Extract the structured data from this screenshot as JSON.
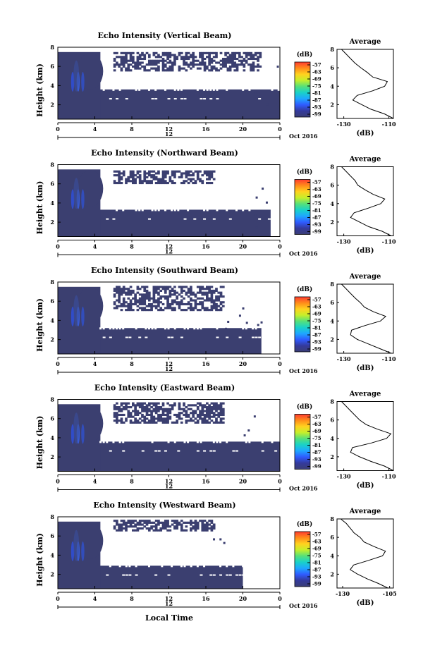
{
  "figure": {
    "xlabel": "Local Time",
    "date_label": "Oct 2016",
    "day_label": "12",
    "colorbar_unit": "(dB)",
    "colorbar_ticks": [
      "-57",
      "-63",
      "-69",
      "-75",
      "-81",
      "-87",
      "-93",
      "-99"
    ],
    "colorbar_colors": [
      "#ff3b30",
      "#ff8c1a",
      "#ffd21f",
      "#c6ef2a",
      "#55e07a",
      "#19d2c8",
      "#1ea7ff",
      "#2f5bff",
      "#343a9c",
      "#3a3d75"
    ],
    "background_color": "#3b3f70",
    "avg_title": "Average",
    "avg_xlabel": "(dB)"
  },
  "chart_data": [
    {
      "type": "heatmap",
      "title": "Echo Intensity (Vertical Beam)",
      "ylabel": "Height (km)",
      "x_ticks": [
        "0",
        "4",
        "8",
        "12",
        "16",
        "20",
        "0"
      ],
      "y_ticks": [
        "2",
        "4",
        "6",
        "8"
      ],
      "xlim": [
        0,
        24
      ],
      "ylim": [
        0.5,
        8
      ],
      "lower_layer_top_km": 3.6,
      "lower_layer_end_h": 24,
      "upper_layer": [
        5.5,
        7.5
      ],
      "upper_layer_end_h": 22,
      "average_profile": {
        "x_ticks": [
          "-130",
          "-110"
        ],
        "xlim": [
          -133,
          -108
        ],
        "y_ticks": [
          "2",
          "4",
          "6",
          "8"
        ],
        "height": [
          0.5,
          1,
          1.5,
          2,
          2.5,
          3,
          3.5,
          4,
          4.5,
          5,
          5.5,
          6,
          6.5,
          7,
          7.5,
          8
        ],
        "value": [
          -108,
          -112,
          -118,
          -122,
          -126,
          -125,
          -118,
          -112,
          -110,
          -117,
          -120,
          -122,
          -125,
          -127,
          -129,
          -131
        ]
      }
    },
    {
      "type": "heatmap",
      "title": "Echo Intensity (Northward Beam)",
      "ylabel": "Height (km)",
      "x_ticks": [
        "0",
        "4",
        "8",
        "12",
        "16",
        "20",
        "0"
      ],
      "y_ticks": [
        "2",
        "4",
        "6",
        "8"
      ],
      "xlim": [
        0,
        24
      ],
      "ylim": [
        0.5,
        8
      ],
      "lower_layer_top_km": 3.3,
      "lower_layer_end_h": 23,
      "upper_layer": [
        6.0,
        7.3
      ],
      "upper_layer_end_h": 17,
      "average_profile": {
        "x_ticks": [
          "-130",
          "-110"
        ],
        "xlim": [
          -133,
          -108
        ],
        "y_ticks": [
          "2",
          "4",
          "6",
          "8"
        ],
        "height": [
          0.5,
          1,
          1.5,
          2,
          2.5,
          3,
          3.5,
          4,
          4.5,
          5,
          5.5,
          6,
          6.5,
          7,
          7.5,
          8
        ],
        "value": [
          -109,
          -113,
          -119,
          -123,
          -127,
          -126,
          -119,
          -113,
          -112,
          -117,
          -121,
          -123,
          -125,
          -127,
          -129,
          -131
        ]
      }
    },
    {
      "type": "heatmap",
      "title": "Echo Intensity (Southward Beam)",
      "ylabel": "Height (km)",
      "x_ticks": [
        "0",
        "4",
        "8",
        "12",
        "16",
        "20",
        "0"
      ],
      "y_ticks": [
        "2",
        "4",
        "6",
        "8"
      ],
      "xlim": [
        0,
        24
      ],
      "ylim": [
        0.5,
        8
      ],
      "lower_layer_top_km": 3.2,
      "lower_layer_end_h": 22,
      "upper_layer": [
        5.0,
        7.6
      ],
      "upper_layer_end_h": 18,
      "average_profile": {
        "x_ticks": [
          "-130",
          "-110"
        ],
        "xlim": [
          -133,
          -108
        ],
        "y_ticks": [
          "2",
          "4",
          "6",
          "8"
        ],
        "height": [
          0.5,
          1,
          1.5,
          2,
          2.5,
          3,
          3.5,
          4,
          4.5,
          5,
          5.5,
          6,
          6.5,
          7,
          7.5,
          8
        ],
        "value": [
          -109,
          -114,
          -119,
          -124,
          -127,
          -126,
          -120,
          -113,
          -111,
          -116,
          -120,
          -123,
          -125,
          -127,
          -129,
          -131
        ]
      }
    },
    {
      "type": "heatmap",
      "title": "Echo Intensity (Eastward Beam)",
      "ylabel": "Height (km)",
      "x_ticks": [
        "0",
        "4",
        "8",
        "12",
        "16",
        "20",
        "0"
      ],
      "y_ticks": [
        "2",
        "4",
        "6",
        "8"
      ],
      "xlim": [
        0,
        24
      ],
      "ylim": [
        0.5,
        8
      ],
      "lower_layer_top_km": 3.6,
      "lower_layer_end_h": 24,
      "upper_layer": [
        5.5,
        7.6
      ],
      "upper_layer_end_h": 18,
      "average_profile": {
        "x_ticks": [
          "-130",
          "-110"
        ],
        "xlim": [
          -133,
          -108
        ],
        "y_ticks": [
          "2",
          "4",
          "6",
          "8"
        ],
        "height": [
          0.5,
          1,
          1.5,
          2,
          2.5,
          3,
          3.5,
          4,
          4.5,
          5,
          5.5,
          6,
          6.5,
          7,
          7.5,
          8
        ],
        "value": [
          -108,
          -112,
          -118,
          -123,
          -127,
          -126,
          -118,
          -112,
          -110,
          -116,
          -120,
          -122,
          -125,
          -127,
          -129,
          -131
        ]
      }
    },
    {
      "type": "heatmap",
      "title": "Echo Intensity (Westward Beam)",
      "ylabel": "Height (km)",
      "x_ticks": [
        "0",
        "4",
        "8",
        "12",
        "16",
        "20",
        "0"
      ],
      "y_ticks": [
        "2",
        "4",
        "6",
        "8"
      ],
      "xlim": [
        0,
        24
      ],
      "ylim": [
        0.5,
        8
      ],
      "lower_layer_top_km": 2.9,
      "lower_layer_end_h": 20,
      "upper_layer": [
        6.5,
        7.7
      ],
      "upper_layer_end_h": 17,
      "average_profile": {
        "x_ticks": [
          "-130",
          "-105"
        ],
        "xlim": [
          -133,
          -103
        ],
        "y_ticks": [
          "2",
          "4",
          "6",
          "8"
        ],
        "height": [
          0.5,
          1,
          1.5,
          2,
          2.5,
          3,
          3.5,
          4,
          4.5,
          5,
          5.5,
          6,
          6.5,
          7,
          7.5,
          8
        ],
        "value": [
          -106,
          -111,
          -117,
          -122,
          -126,
          -124,
          -116,
          -109,
          -108,
          -114,
          -118,
          -121,
          -124,
          -126,
          -128,
          -131
        ]
      }
    }
  ]
}
